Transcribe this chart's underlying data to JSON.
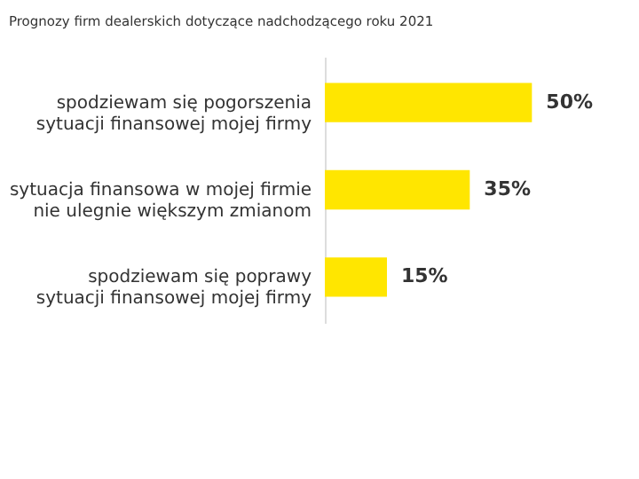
{
  "chart_data": {
    "type": "bar",
    "orientation": "horizontal",
    "title": "Prognozy firm dealerskich dotyczące nadchodzącego roku 2021",
    "categories": [
      "spodziewam się pogorszenia\nsytuacji finansowej mojej firmy",
      "sytuacja finansowa w mojej firmie\nnie ulegnie większym zmianom",
      "spodziewam się poprawy\nsytuacji finansowej mojej firmy"
    ],
    "values": [
      50,
      35,
      15
    ],
    "value_labels": [
      "50%",
      "35%",
      "15%"
    ],
    "color": "#ffe600",
    "grid": false
  }
}
